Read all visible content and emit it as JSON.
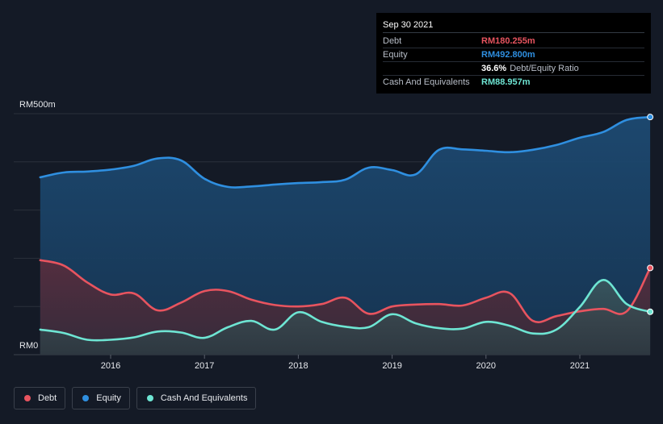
{
  "tooltip": {
    "date": "Sep 30 2021",
    "debt_label": "Debt",
    "debt_value": "RM180.255m",
    "equity_label": "Equity",
    "equity_value": "RM492.800m",
    "ratio_value": "36.6%",
    "ratio_label": "Debt/Equity Ratio",
    "cash_label": "Cash And Equivalents",
    "cash_value": "RM88.957m"
  },
  "legend": [
    {
      "label": "Debt",
      "color": "#e8545f"
    },
    {
      "label": "Equity",
      "color": "#2f8fe0"
    },
    {
      "label": "Cash And Equivalents",
      "color": "#6ee5d3"
    }
  ],
  "colors": {
    "debt": "#e8545f",
    "equity": "#2f8fe0",
    "cash": "#6ee5d3",
    "background": "#141a26"
  },
  "chart_data": {
    "type": "area",
    "title": "",
    "xlabel": "",
    "ylabel": "",
    "ylim": [
      0,
      500
    ],
    "y_tick_labels": [
      "RM0",
      "RM500m"
    ],
    "x_tick_labels": [
      "2016",
      "2017",
      "2018",
      "2019",
      "2020",
      "2021"
    ],
    "x_ticks": [
      2016,
      2017,
      2018,
      2019,
      2020,
      2021
    ],
    "xlim": [
      2015.25,
      2021.75
    ],
    "grid": true,
    "series": [
      {
        "name": "Equity",
        "x": [
          2015.25,
          2015.5,
          2015.75,
          2016.0,
          2016.25,
          2016.5,
          2016.75,
          2017.0,
          2017.25,
          2017.5,
          2017.75,
          2018.0,
          2018.25,
          2018.5,
          2018.75,
          2019.0,
          2019.25,
          2019.5,
          2019.75,
          2020.0,
          2020.25,
          2020.5,
          2020.75,
          2021.0,
          2021.25,
          2021.5,
          2021.75
        ],
        "values": [
          368,
          378,
          380,
          384,
          392,
          407,
          403,
          365,
          348,
          349,
          353,
          356,
          358,
          363,
          388,
          383,
          374,
          425,
          426,
          423,
          420,
          425,
          435,
          450,
          462,
          487,
          493
        ]
      },
      {
        "name": "Debt",
        "x": [
          2015.25,
          2015.5,
          2015.75,
          2016.0,
          2016.25,
          2016.5,
          2016.75,
          2017.0,
          2017.25,
          2017.5,
          2017.75,
          2018.0,
          2018.25,
          2018.5,
          2018.75,
          2019.0,
          2019.25,
          2019.5,
          2019.75,
          2020.0,
          2020.25,
          2020.5,
          2020.75,
          2021.0,
          2021.25,
          2021.5,
          2021.75
        ],
        "values": [
          196,
          185,
          150,
          125,
          127,
          92,
          108,
          132,
          132,
          114,
          103,
          100,
          105,
          118,
          85,
          100,
          104,
          105,
          102,
          118,
          128,
          70,
          80,
          90,
          95,
          90,
          180
        ]
      },
      {
        "name": "Cash And Equivalents",
        "x": [
          2015.25,
          2015.5,
          2015.75,
          2016.0,
          2016.25,
          2016.5,
          2016.75,
          2017.0,
          2017.25,
          2017.5,
          2017.75,
          2018.0,
          2018.25,
          2018.5,
          2018.75,
          2019.0,
          2019.25,
          2019.5,
          2019.75,
          2020.0,
          2020.25,
          2020.5,
          2020.75,
          2021.0,
          2021.25,
          2021.5,
          2021.75
        ],
        "values": [
          52,
          45,
          31,
          31,
          36,
          48,
          46,
          35,
          57,
          70,
          52,
          88,
          68,
          58,
          57,
          84,
          65,
          55,
          54,
          68,
          60,
          44,
          52,
          99,
          155,
          105,
          89
        ]
      }
    ]
  }
}
